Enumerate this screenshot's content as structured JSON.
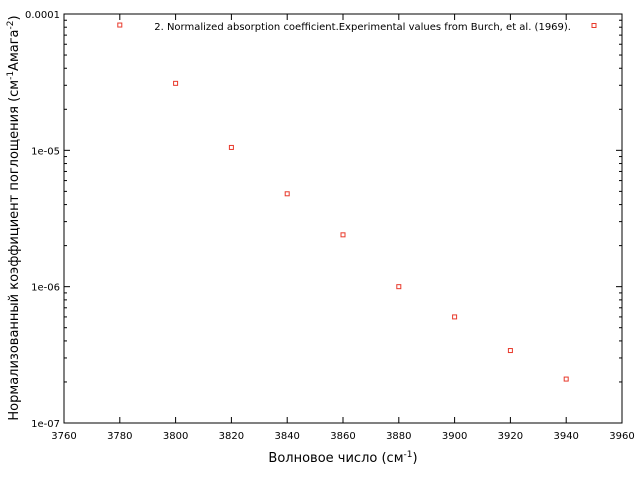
{
  "chart_data": {
    "type": "scatter",
    "title": "",
    "xlabel": {
      "base": "Волновое число (см",
      "sup": "-1",
      "tail": ")"
    },
    "ylabel": {
      "base": "Нормализованный коэффициент поглощения (см",
      "sup1": "-1",
      "mid": "Амага",
      "sup2": "-2",
      "tail": ")"
    },
    "xlim": [
      3760,
      3960
    ],
    "ylim": [
      1e-07,
      0.0001
    ],
    "yscale": "log",
    "grid": false,
    "legend_position": "top-right",
    "xticks": [
      3760,
      3780,
      3800,
      3820,
      3840,
      3860,
      3880,
      3900,
      3920,
      3940,
      3960
    ],
    "xtick_labels": [
      "3760",
      "3780",
      "3800",
      "3820",
      "3840",
      "3860",
      "3880",
      "3900",
      "3920",
      "3940",
      "3960"
    ],
    "yticks": [
      1e-07,
      1e-06,
      1e-05,
      0.0001
    ],
    "ytick_labels": [
      "1e-07",
      "1e-06",
      "1e-05",
      "0.0001"
    ],
    "series": [
      {
        "name": "2. Normalized absorption coefficient.Experimental values from Burch, et al. (1969).",
        "color": "#e8382a",
        "marker": "open-square",
        "x": [
          3780,
          3800,
          3820,
          3840,
          3860,
          3880,
          3900,
          3920,
          3940
        ],
        "y": [
          8.3e-05,
          3.1e-05,
          1.05e-05,
          4.8e-06,
          2.4e-06,
          1e-06,
          6e-07,
          3.4e-07,
          2.1e-07
        ]
      }
    ]
  }
}
